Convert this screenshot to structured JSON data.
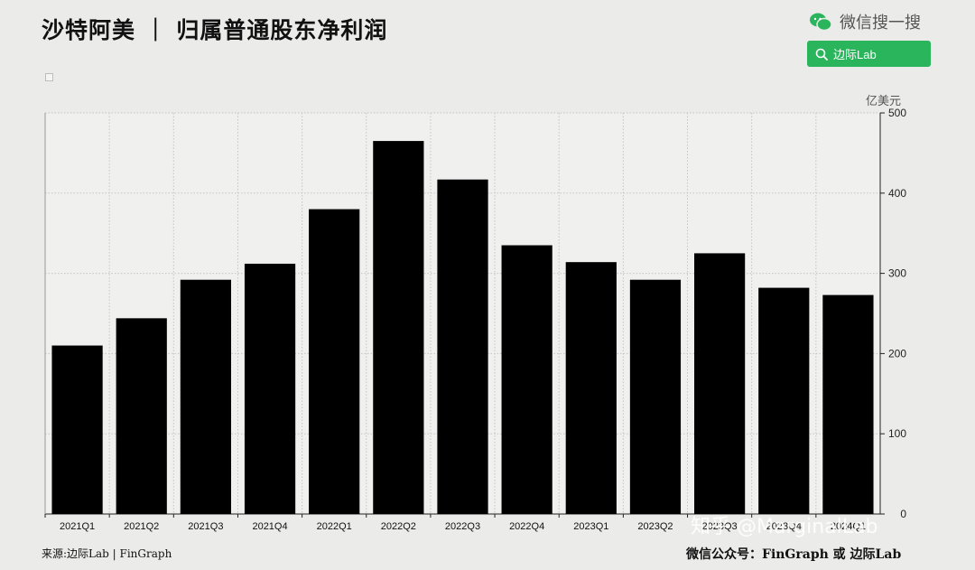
{
  "header": {
    "title": "沙特阿美 ｜ 归属普通股东净利润",
    "brand_text": "微信搜一搜",
    "search_text": "边际Lab",
    "brand_color": "#2ab55c"
  },
  "footer": {
    "source": "来源:边际Lab | FinGraph",
    "wechat": "微信公众号：FinGraph 或 边际Lab",
    "watermark": "知乎 @MarginalLab"
  },
  "chart_data": {
    "type": "bar",
    "ylabel": "亿美元",
    "ylim": [
      0,
      500
    ],
    "yticks": [
      0,
      100,
      200,
      300,
      400,
      500
    ],
    "y_axis_position": "right",
    "grid": true,
    "bar_color": "#000000",
    "categories": [
      "2021Q1",
      "2021Q2",
      "2021Q3",
      "2021Q4",
      "2022Q1",
      "2022Q2",
      "2022Q3",
      "2022Q4",
      "2023Q1",
      "2023Q2",
      "2023Q3",
      "2023Q4",
      "2024Q1"
    ],
    "values": [
      210,
      244,
      292,
      312,
      380,
      465,
      417,
      335,
      314,
      292,
      325,
      282,
      273
    ]
  }
}
